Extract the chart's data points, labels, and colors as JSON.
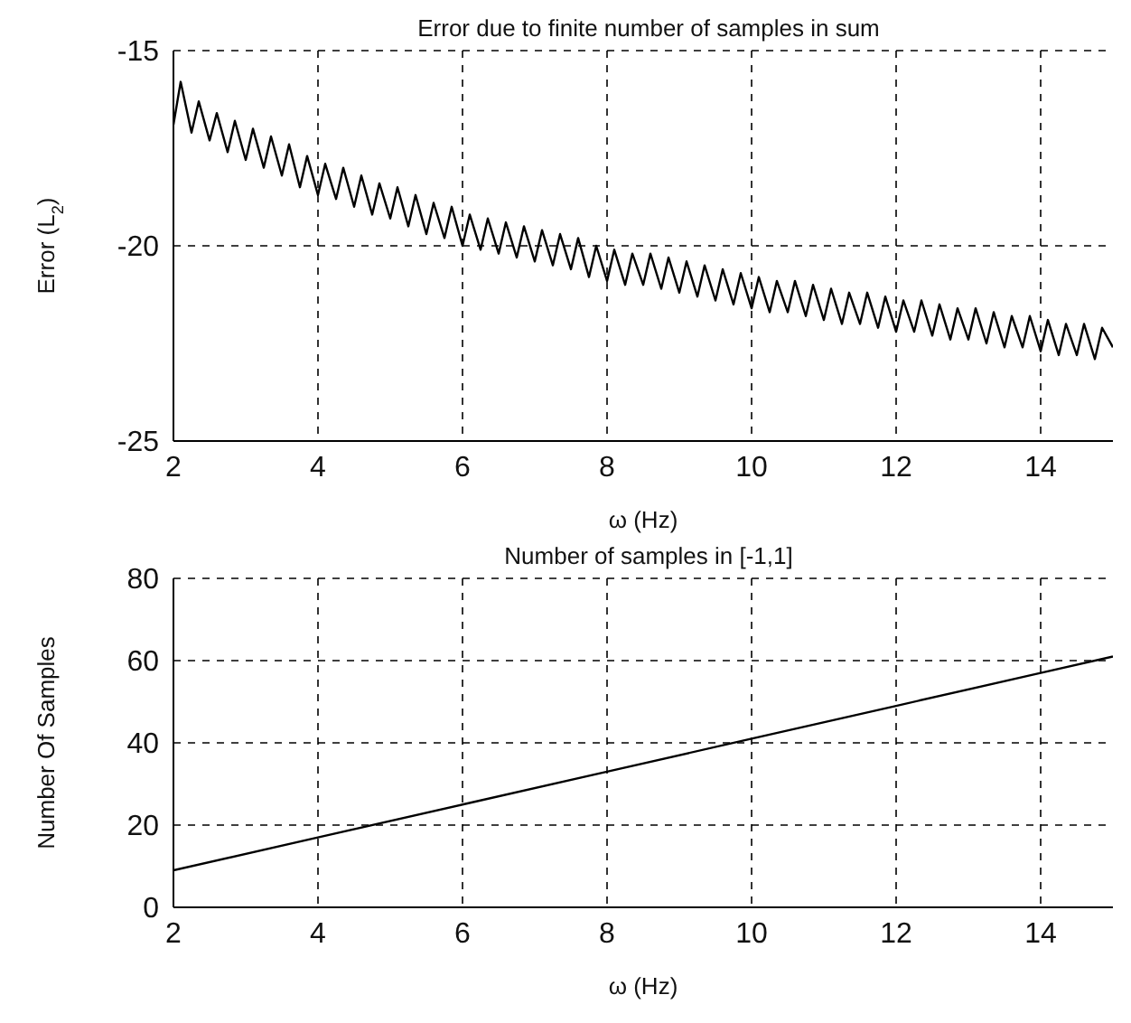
{
  "chart_data": [
    {
      "type": "line",
      "title": "Error due to finite number of samples in sum",
      "xlabel": "ω (Hz)",
      "ylabel": "Error (L$_{2}$)",
      "xlim": [
        2,
        15
      ],
      "xticks": [
        2,
        4,
        6,
        8,
        10,
        12,
        14
      ],
      "ylim": [
        -25,
        -15
      ],
      "yticks": [
        -25,
        -20,
        -15
      ],
      "grid": true,
      "line_style": "solid",
      "series": [
        {
          "color": "#000000",
          "x": [
            2,
            2.1,
            2.25,
            2.35,
            2.5,
            2.6,
            2.75,
            2.85,
            3,
            3.1,
            3.25,
            3.35,
            3.5,
            3.6,
            3.75,
            3.85,
            4,
            4.1,
            4.25,
            4.35,
            4.5,
            4.6,
            4.75,
            4.85,
            5,
            5.1,
            5.25,
            5.35,
            5.5,
            5.6,
            5.75,
            5.85,
            6,
            6.1,
            6.25,
            6.35,
            6.5,
            6.6,
            6.75,
            6.85,
            7,
            7.1,
            7.25,
            7.35,
            7.5,
            7.6,
            7.75,
            7.85,
            8,
            8.1,
            8.25,
            8.35,
            8.5,
            8.6,
            8.75,
            8.85,
            9,
            9.1,
            9.25,
            9.35,
            9.5,
            9.6,
            9.75,
            9.85,
            10,
            10.1,
            10.25,
            10.35,
            10.5,
            10.6,
            10.75,
            10.85,
            11,
            11.1,
            11.25,
            11.35,
            11.5,
            11.6,
            11.75,
            11.85,
            12,
            12.1,
            12.25,
            12.35,
            12.5,
            12.6,
            12.75,
            12.85,
            13,
            13.1,
            13.25,
            13.35,
            13.5,
            13.6,
            13.75,
            13.85,
            14,
            14.1,
            14.25,
            14.35,
            14.5,
            14.6,
            14.75,
            14.85,
            15
          ],
          "values": [
            -16.9,
            -15.8,
            -17.1,
            -16.3,
            -17.3,
            -16.6,
            -17.6,
            -16.8,
            -17.8,
            -17.0,
            -18.0,
            -17.2,
            -18.2,
            -17.4,
            -18.5,
            -17.7,
            -18.7,
            -17.9,
            -18.8,
            -18.0,
            -19.0,
            -18.2,
            -19.2,
            -18.4,
            -19.3,
            -18.5,
            -19.5,
            -18.7,
            -19.7,
            -18.9,
            -19.8,
            -19.0,
            -20.0,
            -19.2,
            -20.1,
            -19.3,
            -20.2,
            -19.4,
            -20.3,
            -19.5,
            -20.4,
            -19.6,
            -20.5,
            -19.7,
            -20.6,
            -19.8,
            -20.8,
            -20.0,
            -20.9,
            -20.1,
            -21.0,
            -20.2,
            -21.0,
            -20.2,
            -21.1,
            -20.3,
            -21.2,
            -20.4,
            -21.3,
            -20.5,
            -21.4,
            -20.6,
            -21.5,
            -20.7,
            -21.6,
            -20.8,
            -21.7,
            -20.9,
            -21.7,
            -20.9,
            -21.8,
            -21.0,
            -21.9,
            -21.1,
            -22.0,
            -21.2,
            -22.0,
            -21.2,
            -22.1,
            -21.3,
            -22.2,
            -21.4,
            -22.2,
            -21.4,
            -22.3,
            -21.5,
            -22.4,
            -21.6,
            -22.4,
            -21.6,
            -22.5,
            -21.7,
            -22.6,
            -21.8,
            -22.6,
            -21.8,
            -22.7,
            -21.9,
            -22.8,
            -22.0,
            -22.8,
            -22.0,
            -22.9,
            -22.1,
            -22.6
          ]
        }
      ]
    },
    {
      "type": "line",
      "title": "Number of samples in [-1,1]",
      "xlabel": "ω (Hz)",
      "ylabel": "Number Of Samples",
      "xlim": [
        2,
        15
      ],
      "xticks": [
        2,
        4,
        6,
        8,
        10,
        12,
        14
      ],
      "ylim": [
        0,
        80
      ],
      "yticks": [
        0,
        20,
        40,
        60,
        80
      ],
      "grid": true,
      "line_style": "solid",
      "series": [
        {
          "color": "#000000",
          "x": [
            2,
            4,
            6,
            8,
            10,
            12,
            14,
            15
          ],
          "values": [
            9,
            17,
            25,
            33,
            41,
            49,
            57,
            61
          ]
        }
      ]
    }
  ]
}
